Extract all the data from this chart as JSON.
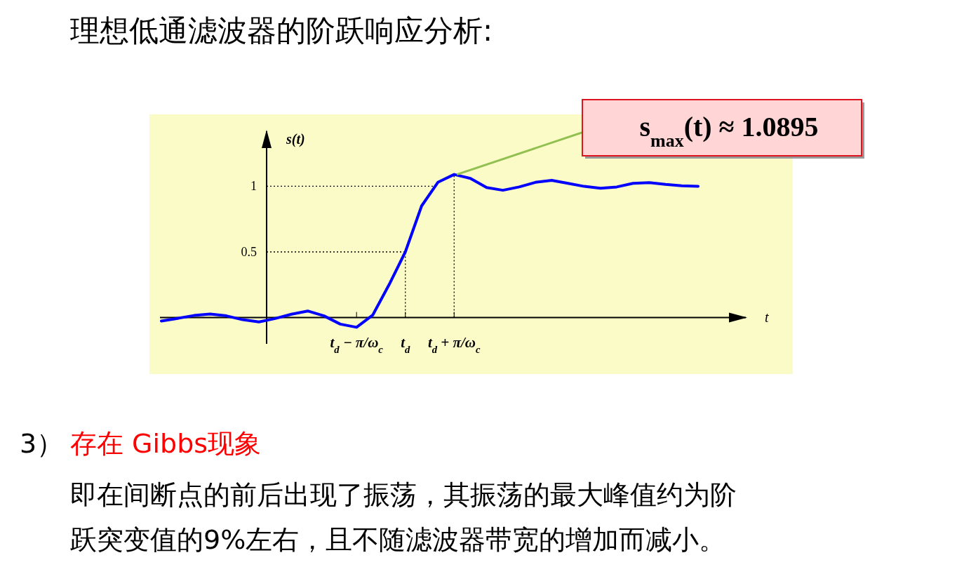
{
  "chart_data": {
    "type": "line",
    "title": "理想低通滤波器的阶跃响应分析:",
    "xlabel": "t",
    "ylabel": "s(t)",
    "categories": [
      null,
      null,
      null,
      null,
      null,
      null,
      null,
      null,
      null,
      null,
      null,
      null,
      "t$_{d}$ − π/ω$_{c}$",
      null,
      null,
      "t$_{d}$",
      null,
      null,
      "t$_{d}$ + π/ω$_{c}$",
      null,
      null,
      null,
      null,
      null,
      null,
      null,
      null,
      null,
      null,
      null,
      null,
      null,
      null,
      null
    ],
    "series": [
      {
        "color": "#0000ff",
        "values": [
          -0.026,
          -0.006,
          0.016,
          0.027,
          0.013,
          -0.016,
          -0.033,
          -0.007,
          0.026,
          0.05,
          0.013,
          -0.05,
          -0.074,
          0.02,
          0.25,
          0.5,
          0.85,
          1.03,
          1.09,
          1.06,
          0.99,
          0.97,
          0.995,
          1.03,
          1.045,
          1.023,
          0.999,
          0.985,
          0.995,
          1.022,
          1.028,
          1.014,
          1.004,
          1.0
        ]
      }
    ],
    "ylim": [
      -0.2,
      1.43
    ],
    "yticks": [
      {
        "value": 0.5,
        "label": "0.5"
      },
      1
    ],
    "ref_lines": [
      {
        "axis": "y",
        "value": 1,
        "line_style": "dotted"
      },
      {
        "axis": "y",
        "value": 0.5,
        "line_style": "dotted"
      },
      {
        "axis": "x",
        "value": "t$_{d}$",
        "line_style": "dotted"
      },
      {
        "axis": "x",
        "value": "t$_{d}$ + π/ω$_{c}$",
        "line_style": "dotted"
      }
    ],
    "annotations": [
      "s$_{max}$(t) ≈ 1.0895",
      "3）",
      "存在 Gibbs现象",
      "即在间断点的前后出现了振荡，其振荡的最大峰值约为阶",
      "跃突变值的9%左右，且不随滤波器带宽的增加而减小。"
    ],
    "marker": "none",
    "line_style": "solid"
  }
}
